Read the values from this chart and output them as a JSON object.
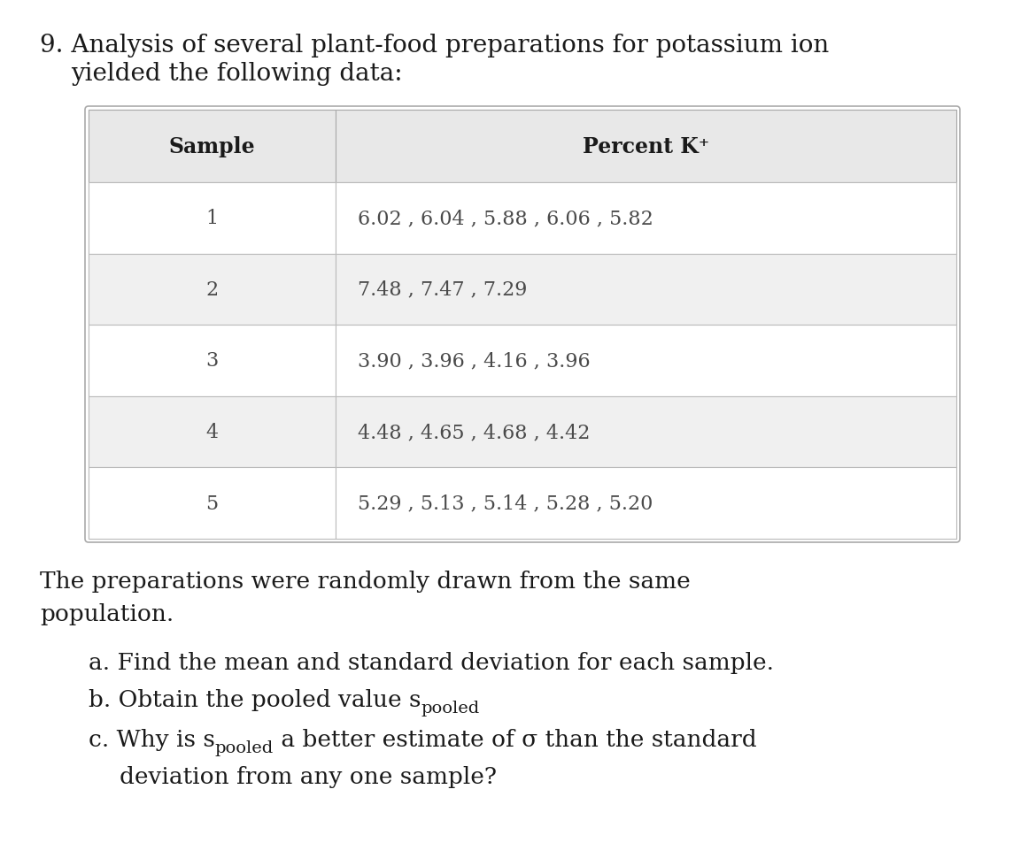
{
  "title_number": "9.",
  "title_line1": "Analysis of several plant-food preparations for potassium ion",
  "title_line2": "yielded the following data:",
  "table_header_col1": "Sample",
  "table_header_col2": "Percent K⁺",
  "table_data": [
    [
      "1",
      "6.02 , 6.04 , 5.88 , 6.06 , 5.82"
    ],
    [
      "2",
      "7.48 , 7.47 , 7.29"
    ],
    [
      "3",
      "3.90 , 3.96 , 4.16 , 3.96"
    ],
    [
      "4",
      "4.48 , 4.65 , 4.68 , 4.42"
    ],
    [
      "5",
      "5.29 , 5.13 , 5.14 , 5.28 , 5.20"
    ]
  ],
  "para_line1": "The preparations were randomly drawn from the same",
  "para_line2": "population.",
  "item_a": "a. Find the mean and standard deviation for each sample.",
  "item_b_prefix": "b. Obtain the pooled value s",
  "item_b_subscript": "pooled",
  "item_c_prefix": "c. Why is s",
  "item_c_subscript": "pooled",
  "item_c_suffix": " a better estimate of σ than the standard",
  "item_c_line2": "deviation from any one sample?",
  "bg_color": "#ffffff",
  "table_bg": "#ffffff",
  "header_bg": "#e8e8e8",
  "row_odd_bg": "#ffffff",
  "row_even_bg": "#f0f0f0",
  "border_color": "#bbbbbb",
  "text_color": "#1a1a1a",
  "table_text_color": "#4a4a4a",
  "font_size_title": 20,
  "font_size_table_header": 17,
  "font_size_table_data": 16,
  "font_size_body": 19
}
